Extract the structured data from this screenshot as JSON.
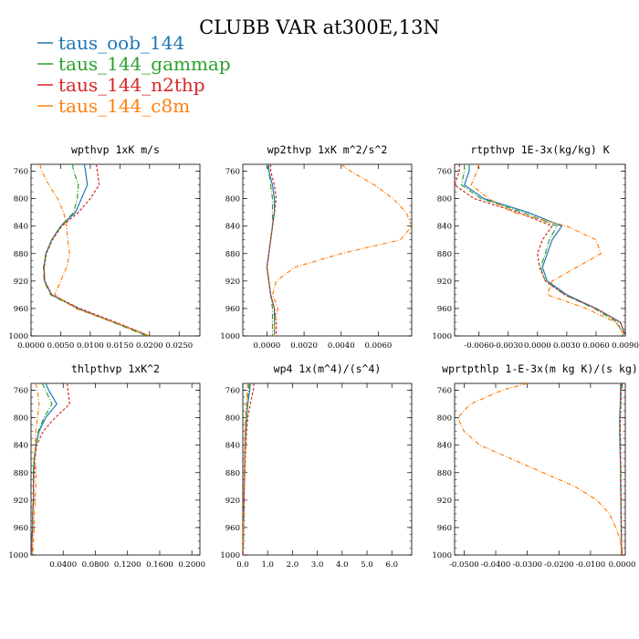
{
  "figure": {
    "title": "CLUBB VAR at300E,13N"
  },
  "legend": [
    {
      "name": "taus_oob_144",
      "color": "#1f77b4"
    },
    {
      "name": "taus_144_gammap",
      "color": "#2ca02c"
    },
    {
      "name": "taus_144_n2thp",
      "color": "#d62728"
    },
    {
      "name": "taus_144_c8m",
      "color": "#ff7f0e"
    }
  ],
  "chart_data": [
    {
      "type": "line",
      "title": "wpthvp  1xK m/s",
      "ylim": [
        1000,
        750
      ],
      "xlim": [
        0,
        0.0285
      ],
      "y_ticks": [
        "760",
        "800",
        "840",
        "880",
        "920",
        "960",
        "1000"
      ],
      "x_ticks": [
        "0.0000",
        "0.0050",
        "0.0100",
        "0.0150",
        "0.0200",
        "0.0250"
      ],
      "y": [
        750,
        760,
        780,
        800,
        820,
        840,
        860,
        880,
        900,
        920,
        940,
        960,
        980,
        1000
      ],
      "series": [
        {
          "name": "taus_oob_144",
          "values": [
            0.009,
            0.0092,
            0.0095,
            0.0085,
            0.0075,
            0.005,
            0.0035,
            0.0025,
            0.0022,
            0.0023,
            0.0035,
            0.008,
            0.014,
            0.02
          ]
        },
        {
          "name": "taus_144_gammap",
          "values": [
            0.007,
            0.0072,
            0.008,
            0.0078,
            0.0072,
            0.005,
            0.0035,
            0.0025,
            0.0021,
            0.0022,
            0.0033,
            0.0078,
            0.0138,
            0.0195
          ]
        },
        {
          "name": "taus_144_n2thp",
          "values": [
            0.011,
            0.0112,
            0.0115,
            0.01,
            0.008,
            0.0052,
            0.0036,
            0.0026,
            0.0022,
            0.0023,
            0.0035,
            0.0082,
            0.0143,
            0.02
          ]
        },
        {
          "name": "taus_144_c8m",
          "values": [
            0.0015,
            0.0018,
            0.003,
            0.0045,
            0.0055,
            0.006,
            0.0062,
            0.0065,
            0.006,
            0.005,
            0.004,
            0.0075,
            0.014,
            0.02
          ]
        }
      ]
    },
    {
      "type": "line",
      "title": "wp2thvp  1xK m^2/s^2",
      "ylim": [
        1000,
        750
      ],
      "xlim": [
        -0.0013,
        0.0078
      ],
      "y_ticks": [
        "760",
        "800",
        "840",
        "880",
        "920",
        "960",
        "1000"
      ],
      "x_ticks": [
        "0.0000",
        "0.0020",
        "0.0040",
        "0.0060"
      ],
      "y": [
        750,
        760,
        780,
        800,
        820,
        840,
        860,
        880,
        900,
        920,
        940,
        960,
        980,
        1000
      ],
      "series": [
        {
          "name": "taus_oob_144",
          "values": [
            0.0001,
            0.0001,
            0.0003,
            0.0004,
            0.0004,
            0.0003,
            0.0002,
            0.0001,
            0.0,
            0.0001,
            0.0002,
            0.0004,
            0.0004,
            0.0004
          ]
        },
        {
          "name": "taus_144_gammap",
          "values": [
            0.0,
            0.0001,
            0.0002,
            0.0003,
            0.0003,
            0.0003,
            0.0002,
            0.0001,
            0.0,
            0.0001,
            0.0002,
            0.0003,
            0.0003,
            0.0003
          ]
        },
        {
          "name": "taus_144_n2thp",
          "values": [
            0.0002,
            0.0002,
            0.0004,
            0.0005,
            0.0004,
            0.0003,
            0.0002,
            0.0001,
            0.0,
            0.0001,
            0.0002,
            0.0004,
            0.0005,
            0.0005
          ]
        },
        {
          "name": "taus_144_c8m",
          "values": [
            0.004,
            0.0045,
            0.0058,
            0.0068,
            0.0075,
            0.0078,
            0.0072,
            0.004,
            0.0015,
            0.0005,
            0.0003,
            0.0006,
            0.0004,
            0.0004
          ]
        }
      ]
    },
    {
      "type": "line",
      "title": "rtpthvp  1E-3x(kg/kg) K",
      "ylim": [
        1000,
        750
      ],
      "xlim": [
        -0.0085,
        0.009
      ],
      "y_ticks": [
        "760",
        "800",
        "840",
        "880",
        "920",
        "960",
        "1000"
      ],
      "x_ticks": [
        "-0.0060",
        "-0.0030",
        "0.0000",
        "0.0030",
        "0.0060",
        "0.0090"
      ],
      "y": [
        750,
        760,
        780,
        800,
        820,
        840,
        860,
        880,
        900,
        920,
        940,
        960,
        980,
        1000
      ],
      "series": [
        {
          "name": "taus_oob_144",
          "values": [
            -0.007,
            -0.007,
            -0.0075,
            -0.0055,
            -0.001,
            0.0025,
            0.0015,
            0.001,
            0.0005,
            0.001,
            0.003,
            0.006,
            0.0085,
            0.009
          ]
        },
        {
          "name": "taus_144_gammap",
          "values": [
            -0.0075,
            -0.0075,
            -0.0078,
            -0.0058,
            -0.0015,
            0.002,
            0.0012,
            0.0008,
            0.0003,
            0.0008,
            0.0028,
            0.0058,
            0.0082,
            0.0088
          ]
        },
        {
          "name": "taus_144_n2thp",
          "values": [
            -0.008,
            -0.008,
            -0.0085,
            -0.0065,
            -0.002,
            0.0015,
            0.0005,
            0.0,
            0.0002,
            0.0008,
            0.0028,
            0.006,
            0.0085,
            0.009
          ]
        },
        {
          "name": "taus_144_c8m",
          "values": [
            -0.006,
            -0.0062,
            -0.0068,
            -0.005,
            -0.0025,
            0.003,
            0.006,
            0.0065,
            0.004,
            0.0015,
            0.001,
            0.005,
            0.008,
            0.009
          ]
        }
      ]
    },
    {
      "type": "line",
      "title": "thlpthvp  1xK^2",
      "ylim": [
        1000,
        750
      ],
      "xlim": [
        0,
        0.21
      ],
      "y_ticks": [
        "760",
        "800",
        "840",
        "880",
        "920",
        "960",
        "1000"
      ],
      "x_ticks": [
        "0.0400",
        "0.0800",
        "0.1200",
        "0.1600",
        "0.2000"
      ],
      "y": [
        750,
        760,
        780,
        800,
        820,
        840,
        860,
        880,
        900,
        920,
        940,
        960,
        980,
        1000
      ],
      "series": [
        {
          "name": "taus_oob_144",
          "values": [
            0.018,
            0.022,
            0.032,
            0.018,
            0.01,
            0.006,
            0.004,
            0.003,
            0.003,
            0.003,
            0.002,
            0.002,
            0.001,
            0.001
          ]
        },
        {
          "name": "taus_144_gammap",
          "values": [
            0.014,
            0.018,
            0.026,
            0.016,
            0.009,
            0.006,
            0.004,
            0.003,
            0.003,
            0.003,
            0.002,
            0.002,
            0.001,
            0.001
          ]
        },
        {
          "name": "taus_144_n2thp",
          "values": [
            0.045,
            0.046,
            0.048,
            0.03,
            0.015,
            0.007,
            0.005,
            0.004,
            0.003,
            0.003,
            0.002,
            0.002,
            0.001,
            0.001
          ]
        },
        {
          "name": "taus_144_c8m",
          "values": [
            0.006,
            0.008,
            0.01,
            0.008,
            0.006,
            0.005,
            0.005,
            0.006,
            0.006,
            0.005,
            0.004,
            0.004,
            0.003,
            0.002
          ]
        }
      ]
    },
    {
      "type": "line",
      "title": "wp4  1x(m^4)/(s^4)",
      "ylim": [
        1000,
        750
      ],
      "xlim": [
        0,
        6.8
      ],
      "y_ticks": [
        "760",
        "800",
        "840",
        "880",
        "920",
        "960",
        "1000"
      ],
      "x_ticks": [
        "0.0",
        "1.0",
        "2.0",
        "3.0",
        "4.0",
        "5.0",
        "6.0"
      ],
      "y": [
        750,
        760,
        780,
        800,
        820,
        840,
        860,
        880,
        900,
        920,
        940,
        960,
        980,
        1000
      ],
      "series": [
        {
          "name": "taus_oob_144",
          "values": [
            0.3,
            0.28,
            0.2,
            0.15,
            0.12,
            0.1,
            0.08,
            0.07,
            0.06,
            0.05,
            0.04,
            0.03,
            0.02,
            0.01
          ]
        },
        {
          "name": "taus_144_gammap",
          "values": [
            0.25,
            0.24,
            0.18,
            0.14,
            0.11,
            0.09,
            0.08,
            0.07,
            0.06,
            0.05,
            0.04,
            0.03,
            0.02,
            0.01
          ]
        },
        {
          "name": "taus_144_n2thp",
          "values": [
            0.45,
            0.42,
            0.3,
            0.2,
            0.15,
            0.12,
            0.1,
            0.08,
            0.06,
            0.05,
            0.04,
            0.03,
            0.02,
            0.01
          ]
        },
        {
          "name": "taus_144_c8m",
          "values": [
            0.2,
            0.18,
            0.14,
            0.11,
            0.09,
            0.08,
            0.07,
            0.06,
            0.05,
            0.04,
            0.03,
            0.02,
            0.02,
            0.01
          ]
        }
      ]
    },
    {
      "type": "line",
      "title": "wprtpthlp  1-E-3x(m kg K)/(s kg)",
      "ylim": [
        1000,
        750
      ],
      "xlim": [
        -0.053,
        0.001
      ],
      "y_ticks": [
        "760",
        "800",
        "840",
        "880",
        "920",
        "960",
        "1000"
      ],
      "x_ticks": [
        "-0.0500",
        "-0.0400",
        "-0.0300",
        "-0.0200",
        "-0.0100",
        "0.0000"
      ],
      "y": [
        750,
        760,
        780,
        800,
        820,
        840,
        860,
        880,
        900,
        920,
        940,
        960,
        980,
        1000
      ],
      "series": [
        {
          "name": "taus_oob_144",
          "values": [
            -0.0005,
            -0.0005,
            -0.0006,
            -0.0008,
            -0.0008,
            -0.0007,
            -0.0006,
            -0.0005,
            -0.0005,
            -0.0004,
            -0.0004,
            -0.0003,
            -0.0003,
            -0.0002
          ]
        },
        {
          "name": "taus_144_gammap",
          "values": [
            -0.0004,
            -0.0004,
            -0.0005,
            -0.0007,
            -0.0007,
            -0.0006,
            -0.0005,
            -0.0005,
            -0.0004,
            -0.0004,
            -0.0003,
            -0.0003,
            -0.0002,
            -0.0002
          ]
        },
        {
          "name": "taus_144_n2thp",
          "values": [
            -0.0003,
            -0.0003,
            -0.0004,
            -0.0006,
            -0.0006,
            -0.0005,
            -0.0005,
            -0.0004,
            -0.0004,
            -0.0003,
            -0.0003,
            -0.0002,
            -0.0002,
            -0.0001
          ]
        },
        {
          "name": "taus_144_c8m",
          "values": [
            -0.03,
            -0.038,
            -0.048,
            -0.052,
            -0.05,
            -0.045,
            -0.035,
            -0.025,
            -0.015,
            -0.008,
            -0.004,
            -0.002,
            -0.0005,
            -0.0002
          ]
        }
      ]
    }
  ]
}
